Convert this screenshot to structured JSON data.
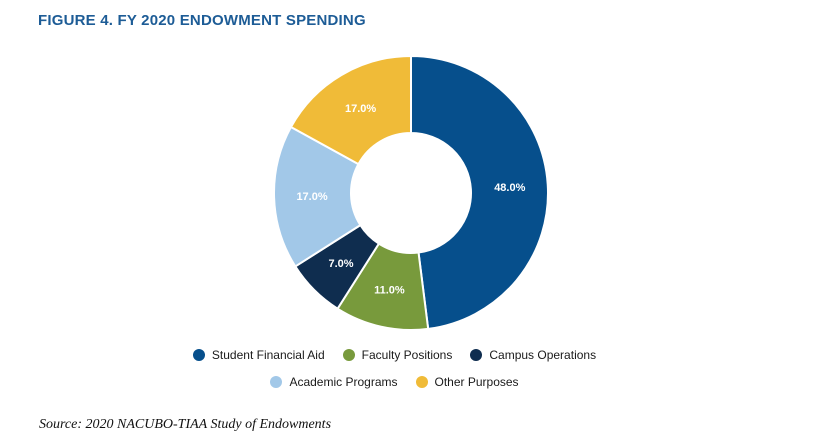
{
  "figure": {
    "title": "FIGURE 4. FY 2020 ENDOWMENT SPENDING",
    "source": "Source: 2020 NACUBO-TIAA Study of Endowments"
  },
  "chart_data": {
    "type": "pie",
    "donut": true,
    "title": "FIGURE 4. FY 2020 ENDOWMENT SPENDING",
    "legend_position": "bottom",
    "slices": [
      {
        "label": "Student Financial Aid",
        "value": 48.0,
        "display": "48.0%",
        "color": "#064f8c"
      },
      {
        "label": "Faculty Positions",
        "value": 11.0,
        "display": "11.0%",
        "color": "#789a3c"
      },
      {
        "label": "Campus Operations",
        "value": 7.0,
        "display": "7.0%",
        "color": "#0f2d4f"
      },
      {
        "label": "Academic Programs",
        "value": 17.0,
        "display": "17.0%",
        "color": "#a2c8e8"
      },
      {
        "label": "Other Purposes",
        "value": 17.0,
        "display": "17.0%",
        "color": "#f0bb38"
      }
    ],
    "legend_rows": [
      [
        "Student Financial Aid",
        "Faculty Positions",
        "Campus Operations"
      ],
      [
        "Academic Programs",
        "Other Purposes"
      ]
    ]
  }
}
